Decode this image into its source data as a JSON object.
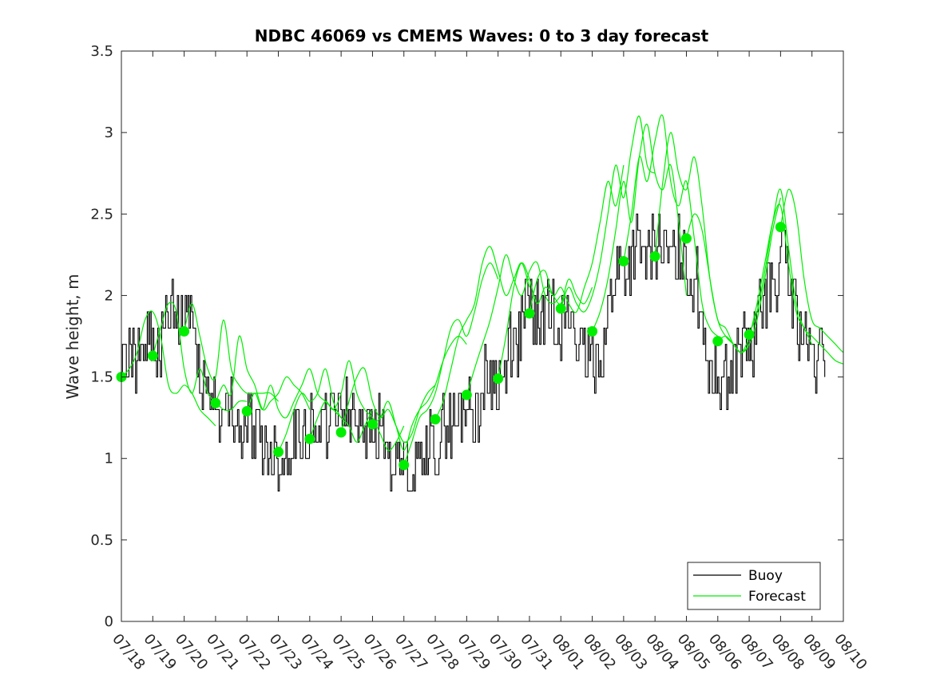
{
  "chart_data": {
    "type": "line",
    "title": "NDBC 46069 vs CMEMS Waves: 0 to 3 day forecast",
    "xlabel": "",
    "ylabel": "Wave height, m",
    "x_unit": "date (MM/DD)",
    "xlim": [
      "07/18",
      "08/10"
    ],
    "ylim": [
      0,
      3.5
    ],
    "x_tick_labels": [
      "07/18",
      "07/19",
      "07/20",
      "07/21",
      "07/22",
      "07/23",
      "07/24",
      "07/25",
      "07/26",
      "07/27",
      "07/28",
      "07/29",
      "07/30",
      "07/31",
      "08/01",
      "08/02",
      "08/03",
      "08/04",
      "08/05",
      "08/06",
      "08/07",
      "08/08",
      "08/09",
      "08/10"
    ],
    "y_ticks": [
      0,
      0.5,
      1,
      1.5,
      2,
      2.5,
      3,
      3.5
    ],
    "y_tick_labels": [
      "0",
      "0.5",
      "1",
      "1.5",
      "2",
      "2.5",
      "3",
      "3.5"
    ],
    "grid": false,
    "legend_position": "bottom-right",
    "legend": [
      "Buoy",
      "Forecast"
    ],
    "colors": {
      "buoy": "#000000",
      "forecast": "#00ee00",
      "forecast_marker": "#00ee00"
    },
    "series": [
      {
        "name": "Buoy",
        "style": "stepped line, 0.1 m resolution",
        "x": [
          "07/18",
          "07/19",
          "07/20",
          "07/21",
          "07/22",
          "07/23",
          "07/24",
          "07/25",
          "07/26",
          "07/27",
          "07/28",
          "07/29",
          "07/30",
          "07/31",
          "08/01",
          "08/02",
          "08/03",
          "08/04",
          "08/05",
          "08/06",
          "08/07",
          "08/08",
          "08/09"
        ],
        "values": [
          1.6,
          1.7,
          1.9,
          1.3,
          1.2,
          1.0,
          1.2,
          1.3,
          1.2,
          0.9,
          1.1,
          1.3,
          1.5,
          1.9,
          1.9,
          1.6,
          2.2,
          2.3,
          2.2,
          1.5,
          1.7,
          2.2,
          1.6
        ]
      },
      {
        "name": "Forecast",
        "style": "multiple overlapping 0-3 day forecast runs",
        "markers": {
          "x": [
            "07/18",
            "07/19",
            "07/20",
            "07/21",
            "07/22",
            "07/23",
            "07/24",
            "07/25",
            "07/26",
            "07/27",
            "07/28",
            "07/29",
            "07/30",
            "07/31",
            "08/01",
            "08/02",
            "08/03",
            "08/04",
            "08/05",
            "08/06",
            "08/07",
            "08/08"
          ],
          "values": [
            1.5,
            1.63,
            1.78,
            1.34,
            1.29,
            1.04,
            1.12,
            1.16,
            1.21,
            0.96,
            1.24,
            1.39,
            1.49,
            1.89,
            1.92,
            1.78,
            2.21,
            2.24,
            2.35,
            1.72,
            1.76,
            2.42
          ]
        },
        "runs": [
          {
            "start": "07/18",
            "values": [
              1.5,
              1.55,
              1.65,
              1.85,
              1.9,
              1.75,
              1.45,
              1.4,
              1.45,
              1.4,
              1.3,
              1.25,
              1.2
            ]
          },
          {
            "start": "07/19",
            "values": [
              1.63,
              1.8,
              1.95,
              1.9,
              1.55,
              1.4,
              1.55,
              1.4,
              1.35,
              1.3,
              1.3,
              1.35,
              1.35
            ]
          },
          {
            "start": "07/20",
            "values": [
              1.78,
              1.95,
              1.75,
              1.55,
              1.5,
              1.85,
              1.55,
              1.45,
              1.4,
              1.4,
              1.4,
              1.4,
              1.35
            ]
          },
          {
            "start": "07/21",
            "values": [
              1.34,
              1.45,
              1.4,
              1.75,
              1.55,
              1.45,
              1.3,
              1.35,
              1.4,
              1.5,
              1.45,
              1.4,
              1.3
            ]
          },
          {
            "start": "07/22",
            "values": [
              1.29,
              1.4,
              1.3,
              1.45,
              1.3,
              1.25,
              1.35,
              1.45,
              1.55,
              1.4,
              1.35,
              1.3,
              1.25
            ]
          },
          {
            "start": "07/23",
            "values": [
              1.04,
              1.15,
              1.3,
              1.4,
              1.35,
              1.4,
              1.55,
              1.35,
              1.25,
              1.2,
              1.1,
              1.2,
              1.3
            ]
          },
          {
            "start": "07/24",
            "values": [
              1.12,
              1.25,
              1.35,
              1.3,
              1.4,
              1.6,
              1.4,
              1.3,
              1.25,
              1.15,
              1.05,
              1.1,
              1.2
            ]
          },
          {
            "start": "07/25",
            "values": [
              1.16,
              1.35,
              1.5,
              1.55,
              1.35,
              1.25,
              1.3,
              1.2,
              1.1,
              1.15,
              1.3,
              1.4,
              1.45
            ]
          },
          {
            "start": "07/26",
            "values": [
              1.21,
              1.25,
              1.35,
              1.2,
              1.05,
              1.2,
              1.3,
              1.35,
              1.45,
              1.6,
              1.7,
              1.75,
              1.7
            ]
          },
          {
            "start": "07/27",
            "values": [
              0.96,
              1.1,
              1.25,
              1.3,
              1.4,
              1.6,
              1.8,
              1.85,
              1.75,
              1.9,
              2.1,
              2.2,
              2.1
            ]
          },
          {
            "start": "07/28",
            "values": [
              1.24,
              1.35,
              1.55,
              1.75,
              1.85,
              1.95,
              2.2,
              2.3,
              2.15,
              2.0,
              2.1,
              2.2,
              2.05
            ]
          },
          {
            "start": "07/29",
            "values": [
              1.39,
              1.55,
              1.7,
              1.85,
              2.05,
              2.25,
              2.1,
              2.0,
              2.15,
              2.2,
              2.0,
              1.95,
              2.0
            ]
          },
          {
            "start": "07/30",
            "values": [
              1.49,
              1.75,
              2.05,
              2.2,
              2.1,
              1.95,
              2.05,
              2.0,
              1.95,
              2.1,
              2.0,
              1.95,
              2.05
            ]
          },
          {
            "start": "07/31",
            "values": [
              1.89,
              2.1,
              2.15,
              2.0,
              2.05,
              1.95,
              1.9,
              2.05,
              2.2,
              2.45,
              2.7,
              2.55,
              2.8
            ]
          },
          {
            "start": "08/01",
            "values": [
              1.92,
              2.05,
              1.95,
              1.9,
              2.0,
              2.2,
              2.5,
              2.8,
              2.6,
              2.9,
              3.1,
              2.8,
              2.75
            ]
          },
          {
            "start": "08/02",
            "values": [
              1.78,
              1.9,
              2.1,
              2.4,
              2.7,
              2.45,
              2.85,
              3.05,
              2.75,
              2.65,
              2.8,
              2.45,
              2.0
            ]
          },
          {
            "start": "08/03",
            "values": [
              2.21,
              2.5,
              2.85,
              2.7,
              2.95,
              3.1,
              2.7,
              2.55,
              2.7,
              2.35,
              1.95,
              1.8,
              1.75
            ]
          },
          {
            "start": "08/04",
            "values": [
              2.24,
              2.7,
              3.0,
              2.75,
              2.65,
              2.85,
              2.55,
              2.1,
              1.85,
              1.75,
              1.7,
              1.65,
              1.7
            ]
          },
          {
            "start": "08/05",
            "values": [
              2.35,
              2.5,
              2.4,
              2.1,
              1.85,
              1.8,
              1.7,
              1.65,
              1.7,
              1.85,
              2.1,
              2.4,
              2.6
            ]
          },
          {
            "start": "08/06",
            "values": [
              1.72,
              1.75,
              1.7,
              1.65,
              1.75,
              1.95,
              2.2,
              2.45,
              2.55,
              2.2,
              1.9,
              1.8,
              1.7
            ]
          },
          {
            "start": "08/07",
            "values": [
              1.76,
              1.9,
              2.15,
              2.45,
              2.65,
              2.3,
              1.95,
              1.8,
              1.75,
              1.7,
              1.65,
              1.6,
              1.58
            ]
          },
          {
            "start": "08/08",
            "values": [
              2.42,
              2.65,
              2.5,
              2.1,
              1.85,
              1.8,
              1.75,
              1.7,
              1.65,
              1.62,
              1.6,
              1.58,
              1.58
            ]
          }
        ]
      }
    ]
  }
}
